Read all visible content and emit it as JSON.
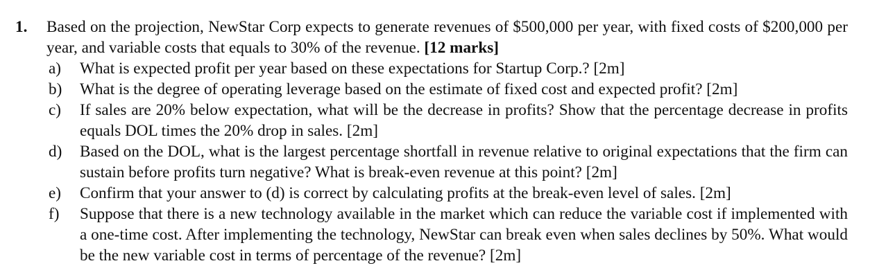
{
  "question": {
    "number": "1.",
    "intro": "Based on the projection, NewStar Corp expects to generate revenues of $500,000 per year, with fixed costs of $200,000 per year, and variable costs that equals to 30% of the revenue.",
    "marks": "[12 marks]",
    "parts": [
      {
        "label": "a)",
        "text": "What is expected profit per year based on these expectations for Startup Corp.? [2m]"
      },
      {
        "label": "b)",
        "text": "What is the degree of operating leverage based on the estimate of fixed cost and expected profit? [2m]"
      },
      {
        "label": "c)",
        "text": "If sales are 20% below expectation, what will be the decrease in profits? Show that the percentage decrease in profits equals DOL times the 20% drop in sales. [2m]"
      },
      {
        "label": "d)",
        "text": "Based on the DOL, what is the largest percentage shortfall in revenue relative to original expectations that the firm can sustain before profits turn negative? What is break-even revenue at this point? [2m]"
      },
      {
        "label": "e)",
        "text": "Confirm that your answer to (d) is correct by calculating profits at the break-even level of sales. [2m]"
      },
      {
        "label": "f)",
        "text": "Suppose that there is a new technology available in the market which can reduce the variable cost if implemented with a one-time cost. After implementing the technology, NewStar can break even when sales declines by 50%. What would be the new variable cost in terms of percentage of the revenue? [2m]"
      }
    ]
  }
}
